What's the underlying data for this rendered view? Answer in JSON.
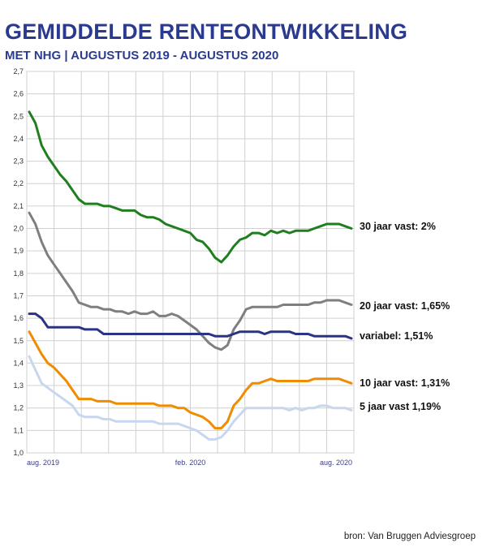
{
  "header": {
    "title": "GEMIDDELDE RENTEONTWIKKELING",
    "subtitle": "MET NHG | AUGUSTUS 2019 - AUGUSTUS 2020"
  },
  "footer": {
    "source": "bron: Van Bruggen Adviesgroep"
  },
  "chart_data": {
    "type": "line",
    "title": "GEMIDDELDE RENTEONTWIKKELING",
    "subtitle": "MET NHG | AUGUSTUS 2019 - AUGUSTUS 2020",
    "xlabel": "",
    "ylabel": "",
    "ylim": [
      1.0,
      2.7
    ],
    "ytick_step": 0.1,
    "ytick_labels": [
      "1,0",
      "1,1",
      "1,2",
      "1,3",
      "1,4",
      "1,5",
      "1,6",
      "1,7",
      "1,8",
      "1,9",
      "2,0",
      "2,1",
      "2,2",
      "2,3",
      "2,4",
      "2,5",
      "2,6",
      "2,7"
    ],
    "x_tick_labels": [
      {
        "label": "aug. 2019",
        "index": 0
      },
      {
        "label": "feb. 2020",
        "index": 26
      },
      {
        "label": "aug. 2020",
        "index": 52
      }
    ],
    "x_points": 53,
    "grid": true,
    "series": [
      {
        "name": "30 jaar vast: 2%",
        "color": "#1f7f1f",
        "values": [
          2.52,
          2.47,
          2.37,
          2.32,
          2.28,
          2.24,
          2.21,
          2.17,
          2.13,
          2.11,
          2.11,
          2.11,
          2.1,
          2.1,
          2.09,
          2.08,
          2.08,
          2.08,
          2.06,
          2.05,
          2.05,
          2.04,
          2.02,
          2.01,
          2.0,
          1.99,
          1.98,
          1.95,
          1.94,
          1.91,
          1.87,
          1.85,
          1.88,
          1.92,
          1.95,
          1.96,
          1.98,
          1.98,
          1.97,
          1.99,
          1.98,
          1.99,
          1.98,
          1.99,
          1.99,
          1.99,
          2.0,
          2.01,
          2.02,
          2.02,
          2.02,
          2.01,
          2.0
        ]
      },
      {
        "name": "20 jaar vast: 1,65%",
        "color": "#7f7f7f",
        "values": [
          2.07,
          2.02,
          1.94,
          1.88,
          1.84,
          1.8,
          1.76,
          1.72,
          1.67,
          1.66,
          1.65,
          1.65,
          1.64,
          1.64,
          1.63,
          1.63,
          1.62,
          1.63,
          1.62,
          1.62,
          1.63,
          1.61,
          1.61,
          1.62,
          1.61,
          1.59,
          1.57,
          1.55,
          1.52,
          1.49,
          1.47,
          1.46,
          1.48,
          1.55,
          1.59,
          1.64,
          1.65,
          1.65,
          1.65,
          1.65,
          1.65,
          1.66,
          1.66,
          1.66,
          1.66,
          1.66,
          1.67,
          1.67,
          1.68,
          1.68,
          1.68,
          1.67,
          1.66
        ]
      },
      {
        "name": "variabel: 1,51%",
        "color": "#2a3484",
        "values": [
          1.62,
          1.62,
          1.6,
          1.56,
          1.56,
          1.56,
          1.56,
          1.56,
          1.56,
          1.55,
          1.55,
          1.55,
          1.53,
          1.53,
          1.53,
          1.53,
          1.53,
          1.53,
          1.53,
          1.53,
          1.53,
          1.53,
          1.53,
          1.53,
          1.53,
          1.53,
          1.53,
          1.53,
          1.53,
          1.53,
          1.52,
          1.52,
          1.52,
          1.53,
          1.54,
          1.54,
          1.54,
          1.54,
          1.53,
          1.54,
          1.54,
          1.54,
          1.54,
          1.53,
          1.53,
          1.53,
          1.52,
          1.52,
          1.52,
          1.52,
          1.52,
          1.52,
          1.51
        ]
      },
      {
        "name": "10 jaar vast: 1,31%",
        "color": "#f08c00",
        "values": [
          1.54,
          1.49,
          1.44,
          1.4,
          1.38,
          1.35,
          1.32,
          1.28,
          1.24,
          1.24,
          1.24,
          1.23,
          1.23,
          1.23,
          1.22,
          1.22,
          1.22,
          1.22,
          1.22,
          1.22,
          1.22,
          1.21,
          1.21,
          1.21,
          1.2,
          1.2,
          1.18,
          1.17,
          1.16,
          1.14,
          1.11,
          1.11,
          1.14,
          1.21,
          1.24,
          1.28,
          1.31,
          1.31,
          1.32,
          1.33,
          1.32,
          1.32,
          1.32,
          1.32,
          1.32,
          1.32,
          1.33,
          1.33,
          1.33,
          1.33,
          1.33,
          1.32,
          1.31
        ]
      },
      {
        "name": "5 jaar vast 1,19%",
        "color": "#c8d6ee",
        "values": [
          1.43,
          1.37,
          1.31,
          1.29,
          1.27,
          1.25,
          1.23,
          1.21,
          1.17,
          1.16,
          1.16,
          1.16,
          1.15,
          1.15,
          1.14,
          1.14,
          1.14,
          1.14,
          1.14,
          1.14,
          1.14,
          1.13,
          1.13,
          1.13,
          1.13,
          1.12,
          1.11,
          1.1,
          1.08,
          1.06,
          1.06,
          1.07,
          1.1,
          1.14,
          1.17,
          1.2,
          1.2,
          1.2,
          1.2,
          1.2,
          1.2,
          1.2,
          1.19,
          1.2,
          1.19,
          1.2,
          1.2,
          1.21,
          1.21,
          1.2,
          1.2,
          1.2,
          1.19
        ]
      }
    ]
  }
}
